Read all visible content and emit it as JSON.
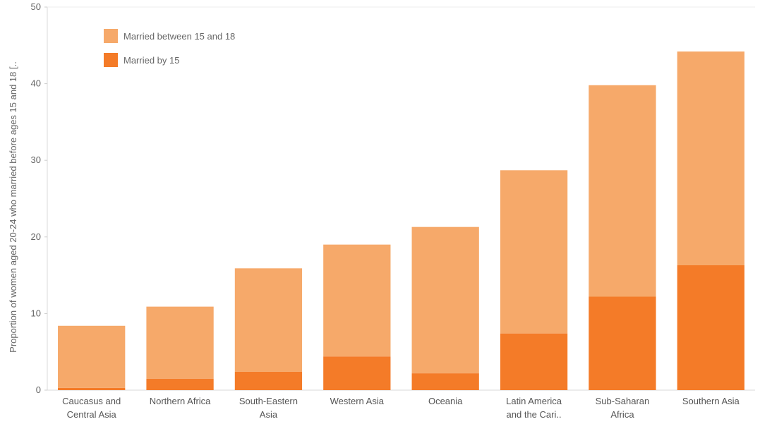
{
  "chart_data": {
    "type": "bar",
    "stacked": true,
    "title": "",
    "xlabel": "",
    "ylabel": "Proportion of women aged 20-24 who married before ages 15 and 18 [..",
    "ylim": [
      0,
      50
    ],
    "yticks": [
      0,
      10,
      20,
      30,
      40,
      50
    ],
    "categories": [
      [
        "Caucasus and",
        "Central Asia"
      ],
      [
        "Northern Africa"
      ],
      [
        "South-Eastern",
        "Asia"
      ],
      [
        "Western Asia"
      ],
      [
        "Oceania"
      ],
      [
        "Latin America",
        "and the Cari.."
      ],
      [
        "Sub-Saharan",
        "Africa"
      ],
      [
        "Southern Asia"
      ]
    ],
    "series": [
      {
        "name": "Married by 15",
        "color": "#f47b28",
        "values": [
          0.3,
          1.5,
          2.4,
          4.4,
          2.2,
          7.4,
          12.2,
          16.3
        ]
      },
      {
        "name": "Married between 15 and 18",
        "color": "#f6a96a",
        "values": [
          8.1,
          9.4,
          13.5,
          14.6,
          19.1,
          21.3,
          27.6,
          27.9
        ]
      }
    ],
    "legend": {
      "position": "top-left",
      "entries": [
        {
          "label": "Married between 15 and 18",
          "color": "#f6a96a"
        },
        {
          "label": "Married by 15",
          "color": "#f47b28"
        }
      ]
    },
    "grid": false
  }
}
